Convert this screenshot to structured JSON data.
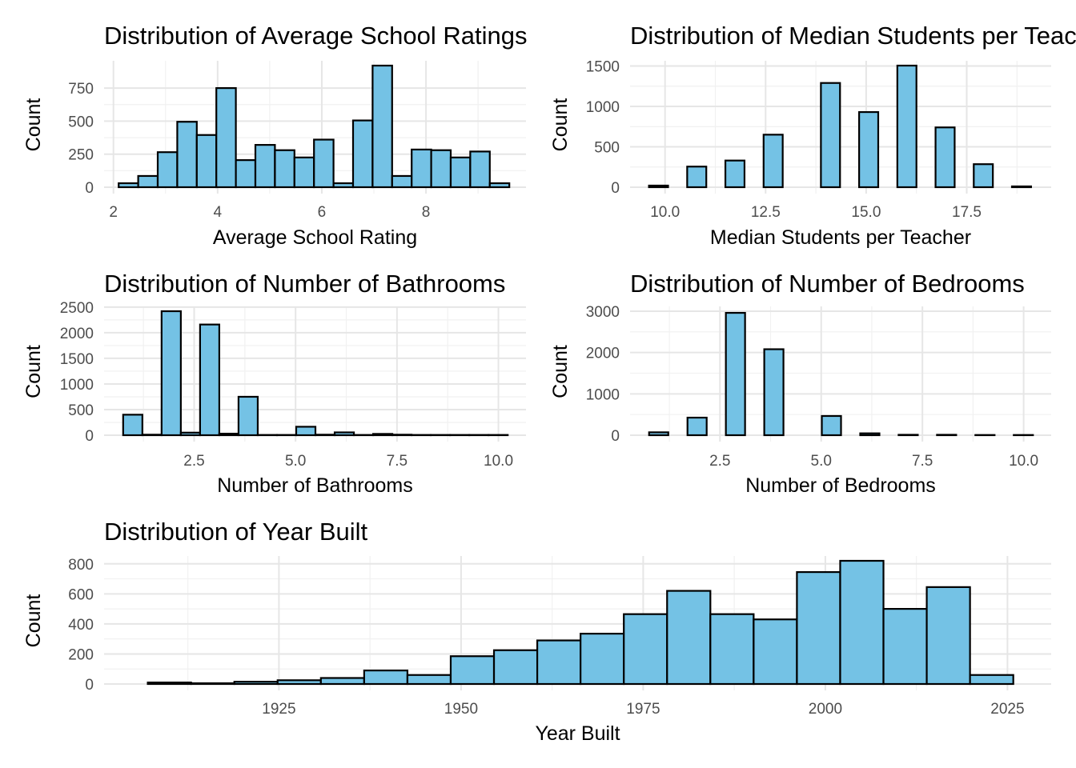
{
  "style": {
    "bar_fill": "#74c2e5",
    "bar_stroke": "#000000",
    "grid_color": "#e6e6e6"
  },
  "chart_data": [
    {
      "type": "bar",
      "title": "Distribution of Average School Ratings",
      "xlabel": "Average School Rating",
      "ylabel": "Count",
      "bin_start": 2.1,
      "bin_width": 0.375,
      "values": [
        30,
        85,
        265,
        495,
        395,
        750,
        205,
        320,
        280,
        225,
        360,
        30,
        505,
        920,
        85,
        285,
        280,
        225,
        270,
        30
      ],
      "xlim": [
        1.82,
        9.92
      ],
      "ylim": [
        0,
        920
      ],
      "xticks": [
        2,
        4,
        6,
        8
      ],
      "xtick_labels": [
        "2",
        "4",
        "6",
        "8"
      ],
      "yticks": [
        0,
        250,
        500,
        750
      ],
      "ytick_labels": [
        "0",
        "250",
        "500",
        "750"
      ]
    },
    {
      "type": "bar",
      "title": "Distribution of Median Students per Teacher",
      "xlabel": "Median Students per Teacher",
      "ylabel": "Count",
      "bin_start": 9.6,
      "bin_width": 0.475,
      "values": [
        20,
        0,
        255,
        0,
        330,
        0,
        650,
        0,
        0,
        1290,
        0,
        930,
        0,
        1505,
        0,
        740,
        0,
        285,
        0,
        10
      ],
      "xlim": [
        9.13,
        19.6
      ],
      "ylim": [
        0,
        1505
      ],
      "xticks": [
        10,
        12.5,
        15,
        17.5
      ],
      "xtick_labels": [
        "10.0",
        "12.5",
        "15.0",
        "17.5"
      ],
      "yticks": [
        0,
        500,
        1000,
        1500
      ],
      "ytick_labels": [
        "0",
        "500",
        "1000",
        "1500"
      ]
    },
    {
      "type": "bar",
      "title": "Distribution of Number of Bathrooms",
      "xlabel": "Number of Bathrooms",
      "ylabel": "Count",
      "bin_start": 0.75,
      "bin_width": 0.474,
      "values": [
        400,
        10,
        2420,
        50,
        2160,
        30,
        750,
        5,
        5,
        165,
        10,
        55,
        5,
        25,
        10,
        5,
        5,
        5,
        5,
        5
      ],
      "xlim": [
        0.28,
        10.68
      ],
      "ylim": [
        0,
        2420
      ],
      "xticks": [
        2.5,
        5,
        7.5,
        10
      ],
      "xtick_labels": [
        "2.5",
        "5.0",
        "7.5",
        "10.0"
      ],
      "yticks": [
        0,
        500,
        1000,
        1500,
        2000,
        2500
      ],
      "ytick_labels": [
        "0",
        "500",
        "1000",
        "1500",
        "2000",
        "2500"
      ]
    },
    {
      "type": "bar",
      "title": "Distribution of Number of Bedrooms",
      "xlabel": "Number of Bedrooms",
      "ylabel": "Count",
      "bin_start": 0.75,
      "bin_width": 0.474,
      "values": [
        70,
        0,
        425,
        0,
        2960,
        0,
        2080,
        0,
        0,
        465,
        0,
        45,
        0,
        10,
        0,
        10,
        0,
        5,
        0,
        5
      ],
      "xlim": [
        0.28,
        10.68
      ],
      "ylim": [
        0,
        3000
      ],
      "xticks": [
        2.5,
        5,
        7.5,
        10
      ],
      "xtick_labels": [
        "2.5",
        "5.0",
        "7.5",
        "10.0"
      ],
      "yticks": [
        0,
        1000,
        2000,
        3000
      ],
      "ytick_labels": [
        "0",
        "1000",
        "2000",
        "3000"
      ]
    },
    {
      "type": "bar",
      "title": "Distribution of Year Built",
      "xlabel": "Year Built",
      "ylabel": "Count",
      "bin_start": 1907,
      "bin_width": 5.94,
      "values": [
        10,
        5,
        15,
        25,
        40,
        90,
        60,
        185,
        225,
        290,
        335,
        465,
        620,
        465,
        430,
        745,
        820,
        500,
        645,
        60
      ],
      "xlim": [
        1901,
        2031
      ],
      "ylim": [
        0,
        820
      ],
      "xticks": [
        1925,
        1950,
        1975,
        2000,
        2025
      ],
      "xtick_labels": [
        "1925",
        "1950",
        "1975",
        "2000",
        "2025"
      ],
      "yticks": [
        0,
        200,
        400,
        600,
        800
      ],
      "ytick_labels": [
        "0",
        "200",
        "400",
        "600",
        "800"
      ]
    }
  ]
}
